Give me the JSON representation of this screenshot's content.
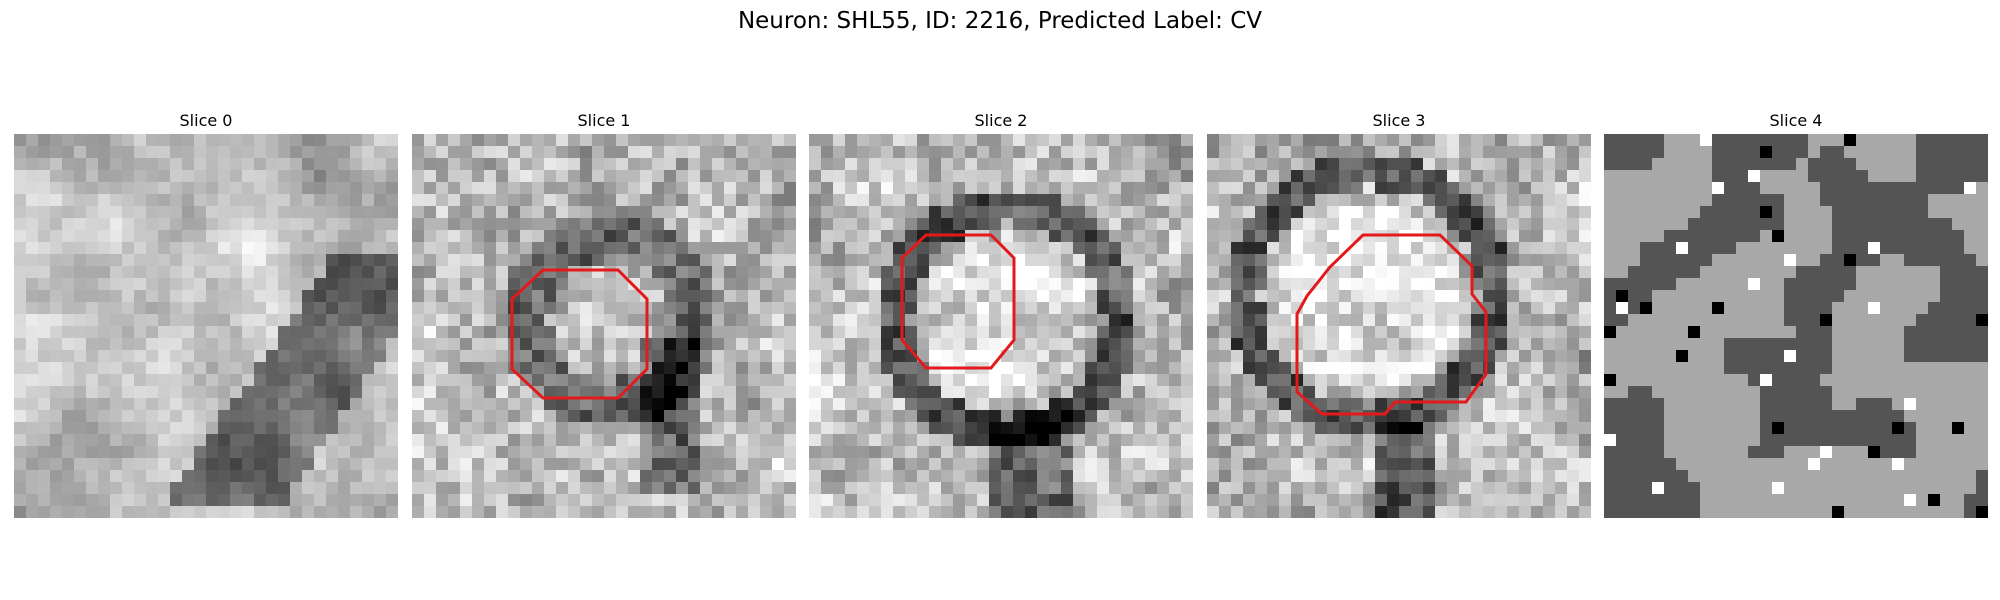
{
  "figure": {
    "title": "Neuron: SHL55, ID: 2216, Predicted Label: CV"
  },
  "outline_color": "#e31a1c",
  "slices": [
    {
      "label": "Slice 0",
      "has_outline": false,
      "style": "smooth",
      "seed": 11
    },
    {
      "label": "Slice 1",
      "has_outline": true,
      "style": "ring-faint",
      "seed": 23
    },
    {
      "label": "Slice 2",
      "has_outline": true,
      "style": "ring",
      "seed": 37
    },
    {
      "label": "Slice 3",
      "has_outline": true,
      "style": "ring-large",
      "seed": 53
    },
    {
      "label": "Slice 4",
      "has_outline": false,
      "style": "quantized",
      "seed": 71
    }
  ]
}
